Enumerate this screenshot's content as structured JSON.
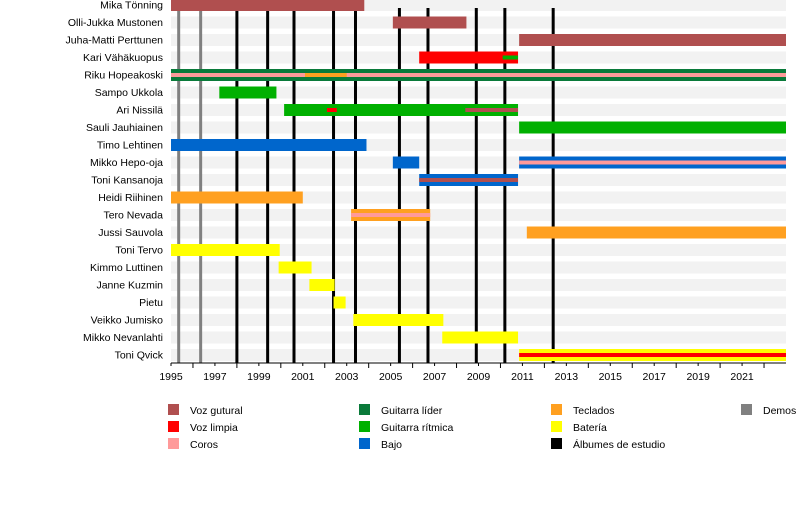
{
  "chart_data": {
    "type": "timeline",
    "title": "",
    "xlim": [
      1995,
      2023
    ],
    "x_tick_labels": [
      "1995",
      "1997",
      "1999",
      "2001",
      "2003",
      "2005",
      "2007",
      "2009",
      "2011",
      "2013",
      "2015",
      "2017",
      "2019",
      "2021"
    ],
    "roles": {
      "voz_gutural": {
        "label": "Voz gutural",
        "color": "#b04f4f"
      },
      "voz_limpia": {
        "label": "Voz limpia",
        "color": "#ff0000"
      },
      "coros": {
        "label": "Coros",
        "color": "#ff9a9a"
      },
      "guitarra_lider": {
        "label": "Guitarra líder",
        "color": "#0a7a3a"
      },
      "guitarra_ritmica": {
        "label": "Guitarra rítmica",
        "color": "#00b000"
      },
      "bajo": {
        "label": "Bajo",
        "color": "#0066cc"
      },
      "teclados": {
        "label": "Teclados",
        "color": "#ffa020"
      },
      "bateria": {
        "label": "Batería",
        "color": "#ffff00"
      },
      "albumes": {
        "label": "Álbumes de estudio",
        "color": "#000000"
      },
      "demos": {
        "label": "Demos",
        "color": "#808080"
      }
    },
    "legend_order": [
      [
        "voz_gutural",
        "voz_limpia",
        "coros"
      ],
      [
        "guitarra_lider",
        "guitarra_ritmica",
        "bajo"
      ],
      [
        "teclados",
        "bateria",
        "albumes"
      ],
      [
        "demos"
      ]
    ],
    "albums": [
      1998.0,
      1999.4,
      2000.6,
      2002.4,
      2003.4,
      2005.4,
      2006.7,
      2008.9,
      2010.2,
      2012.4
    ],
    "demos": [
      1995.35,
      1996.35
    ],
    "members": [
      {
        "name": "Mika Tönning",
        "bars": [
          {
            "role": "voz_gutural",
            "start": 1995,
            "end": 2003.8
          }
        ]
      },
      {
        "name": "Olli-Jukka Mustonen",
        "bars": [
          {
            "role": "voz_gutural",
            "start": 2005.1,
            "end": 2008.45
          }
        ]
      },
      {
        "name": "Juha-Matti Perttunen",
        "bars": [
          {
            "role": "voz_gutural",
            "start": 2010.85,
            "end": 2023
          }
        ]
      },
      {
        "name": "Kari Vähäkuopus",
        "bars": [
          {
            "role": "voz_limpia",
            "start": 2006.3,
            "end": 2010.8
          },
          {
            "role": "guitarra_ritmica",
            "start": 2010.1,
            "end": 2010.8,
            "thin": true
          }
        ]
      },
      {
        "name": "Riku Hopeakoski",
        "bars": [
          {
            "role": "guitarra_lider",
            "start": 1995,
            "end": 2023
          },
          {
            "role": "coros",
            "start": 1995,
            "end": 2023,
            "thin": true
          },
          {
            "role": "teclados",
            "start": 2001.1,
            "end": 2003.0,
            "thin": true
          }
        ]
      },
      {
        "name": "Sampo Ukkola",
        "bars": [
          {
            "role": "guitarra_ritmica",
            "start": 1997.2,
            "end": 1999.8
          }
        ]
      },
      {
        "name": "Ari Nissilä",
        "bars": [
          {
            "role": "guitarra_ritmica",
            "start": 2000.15,
            "end": 2010.8
          },
          {
            "role": "voz_limpia",
            "start": 2002.1,
            "end": 2002.55,
            "thin": true
          },
          {
            "role": "voz_gutural",
            "start": 2008.4,
            "end": 2010.8,
            "thin": true
          }
        ]
      },
      {
        "name": "Sauli Jauhiainen",
        "bars": [
          {
            "role": "guitarra_ritmica",
            "start": 2010.85,
            "end": 2023
          }
        ]
      },
      {
        "name": "Timo Lehtinen",
        "bars": [
          {
            "role": "bajo",
            "start": 1995,
            "end": 2003.9
          }
        ]
      },
      {
        "name": "Mikko Hepo-oja",
        "bars": [
          {
            "role": "bajo",
            "start": 2005.1,
            "end": 2006.3
          },
          {
            "role": "bajo",
            "start": 2010.85,
            "end": 2023
          },
          {
            "role": "coros",
            "start": 2010.85,
            "end": 2023,
            "thin": true
          }
        ]
      },
      {
        "name": "Toni Kansanoja",
        "bars": [
          {
            "role": "bajo",
            "start": 2006.3,
            "end": 2010.8
          },
          {
            "role": "voz_gutural",
            "start": 2006.3,
            "end": 2010.8,
            "thin": true
          }
        ]
      },
      {
        "name": "Heidi Riihinen",
        "bars": [
          {
            "role": "teclados",
            "start": 1995,
            "end": 2001.0
          }
        ]
      },
      {
        "name": "Tero Nevada",
        "bars": [
          {
            "role": "teclados",
            "start": 2003.2,
            "end": 2006.8
          },
          {
            "role": "coros",
            "start": 2003.2,
            "end": 2006.8,
            "thin": true
          }
        ]
      },
      {
        "name": "Jussi Sauvola",
        "bars": [
          {
            "role": "teclados",
            "start": 2011.2,
            "end": 2023
          }
        ]
      },
      {
        "name": "Toni Tervo",
        "bars": [
          {
            "role": "bateria",
            "start": 1995,
            "end": 1999.95
          }
        ]
      },
      {
        "name": "Kimmo Luttinen",
        "bars": [
          {
            "role": "bateria",
            "start": 1999.9,
            "end": 2001.4
          }
        ]
      },
      {
        "name": "Janne Kuzmin",
        "bars": [
          {
            "role": "bateria",
            "start": 2001.3,
            "end": 2002.45
          }
        ]
      },
      {
        "name": "Pietu",
        "bars": [
          {
            "role": "bateria",
            "start": 2002.4,
            "end": 2002.95
          }
        ]
      },
      {
        "name": "Veikko Jumisko",
        "bars": [
          {
            "role": "bateria",
            "start": 2003.3,
            "end": 2007.4
          }
        ]
      },
      {
        "name": "Mikko Nevanlahti",
        "bars": [
          {
            "role": "bateria",
            "start": 2007.35,
            "end": 2010.8
          }
        ]
      },
      {
        "name": "Toni Qvick",
        "bars": [
          {
            "role": "bateria",
            "start": 2010.85,
            "end": 2023
          },
          {
            "role": "voz_limpia",
            "start": 2010.85,
            "end": 2023,
            "thin": true
          }
        ]
      }
    ]
  }
}
